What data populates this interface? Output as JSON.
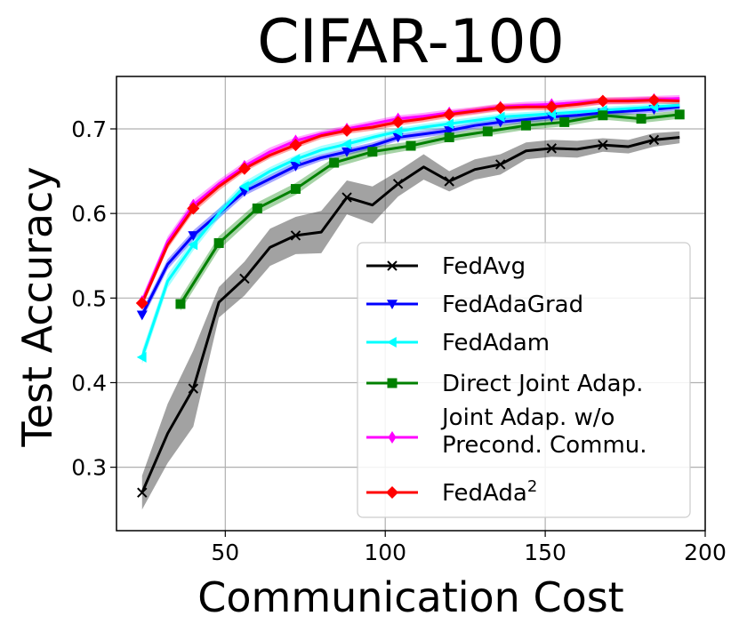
{
  "chart_data": {
    "type": "line",
    "title": "CIFAR-100",
    "xlabel": "Communication Cost",
    "ylabel": "Test Accuracy",
    "xlim": [
      16,
      200
    ],
    "ylim": [
      0.225,
      0.762
    ],
    "xticks": [
      50,
      100,
      150,
      200
    ],
    "xtick_labels": [
      "50",
      "100",
      "150",
      "200"
    ],
    "yticks": [
      0.3,
      0.4,
      0.5,
      0.6,
      0.7
    ],
    "ytick_labels": [
      "0.3",
      "0.4",
      "0.5",
      "0.6",
      "0.7"
    ],
    "grid": true,
    "legend_position": "lower-right",
    "series": [
      {
        "name": "FedAvg",
        "color": "#000000",
        "marker": "x",
        "x": [
          24,
          32,
          40,
          48,
          56,
          64,
          72,
          80,
          88,
          96,
          104,
          112,
          120,
          128,
          136,
          144,
          152,
          160,
          168,
          176,
          184,
          192
        ],
        "y": [
          0.27,
          0.34,
          0.393,
          0.495,
          0.523,
          0.56,
          0.574,
          0.578,
          0.619,
          0.61,
          0.635,
          0.655,
          0.638,
          0.652,
          0.658,
          0.674,
          0.677,
          0.676,
          0.681,
          0.679,
          0.687,
          0.69
        ],
        "band": [
          0.02,
          0.035,
          0.045,
          0.018,
          0.02,
          0.022,
          0.022,
          0.025,
          0.02,
          0.022,
          0.015,
          0.015,
          0.012,
          0.012,
          0.012,
          0.01,
          0.01,
          0.01,
          0.008,
          0.008,
          0.008,
          0.007
        ]
      },
      {
        "name": "FedAdaGrad",
        "color": "#0000ff",
        "marker": "triangle-down",
        "x": [
          24,
          32,
          40,
          48,
          56,
          64,
          72,
          80,
          88,
          96,
          104,
          112,
          120,
          128,
          136,
          144,
          152,
          160,
          168,
          176,
          184,
          192
        ],
        "y": [
          0.48,
          0.54,
          0.574,
          0.6,
          0.626,
          0.641,
          0.656,
          0.666,
          0.673,
          0.68,
          0.69,
          0.694,
          0.698,
          0.704,
          0.708,
          0.711,
          0.714,
          0.716,
          0.719,
          0.721,
          0.723,
          0.726
        ],
        "band": [
          0.006,
          0.006,
          0.006,
          0.006,
          0.005,
          0.005,
          0.005,
          0.004,
          0.004,
          0.004,
          0.004,
          0.004,
          0.004,
          0.004,
          0.004,
          0.004,
          0.004,
          0.004,
          0.004,
          0.004,
          0.004,
          0.004
        ]
      },
      {
        "name": "FedAdam",
        "color": "#00ffff",
        "marker": "triangle-left",
        "x": [
          24,
          32,
          40,
          48,
          56,
          64,
          72,
          80,
          88,
          96,
          104,
          112,
          120,
          128,
          136,
          144,
          152,
          160,
          168,
          176,
          184,
          192
        ],
        "y": [
          0.43,
          0.52,
          0.563,
          0.6,
          0.632,
          0.65,
          0.664,
          0.675,
          0.682,
          0.69,
          0.697,
          0.702,
          0.706,
          0.71,
          0.714,
          0.716,
          0.718,
          0.72,
          0.722,
          0.724,
          0.726,
          0.728
        ],
        "band": [
          0.008,
          0.008,
          0.007,
          0.006,
          0.006,
          0.005,
          0.005,
          0.005,
          0.005,
          0.004,
          0.004,
          0.004,
          0.004,
          0.004,
          0.004,
          0.004,
          0.004,
          0.004,
          0.004,
          0.004,
          0.004,
          0.004
        ]
      },
      {
        "name": "Direct Joint Adap.",
        "color": "#008000",
        "marker": "square",
        "x": [
          36,
          48,
          60,
          72,
          84,
          96,
          108,
          120,
          132,
          144,
          156,
          168,
          180,
          192
        ],
        "y": [
          0.493,
          0.565,
          0.606,
          0.629,
          0.66,
          0.673,
          0.68,
          0.69,
          0.697,
          0.704,
          0.708,
          0.716,
          0.712,
          0.717
        ],
        "band": [
          0.008,
          0.008,
          0.007,
          0.007,
          0.006,
          0.006,
          0.005,
          0.005,
          0.005,
          0.005,
          0.005,
          0.005,
          0.005,
          0.005
        ]
      },
      {
        "name": "Joint Adap. w/o Precond. Commu.",
        "name_lines": [
          "Joint Adap. w/o",
          "Precond. Commu."
        ],
        "color": "#ff00ff",
        "marker": "thin-diamond",
        "x": [
          24,
          32,
          40,
          48,
          56,
          64,
          72,
          80,
          88,
          96,
          104,
          112,
          120,
          128,
          136,
          144,
          152,
          160,
          168,
          176,
          184,
          192
        ],
        "y": [
          0.496,
          0.567,
          0.61,
          0.635,
          0.656,
          0.673,
          0.686,
          0.694,
          0.7,
          0.706,
          0.712,
          0.715,
          0.719,
          0.722,
          0.726,
          0.728,
          0.729,
          0.731,
          0.733,
          0.734,
          0.735,
          0.736
        ],
        "band": [
          0.006,
          0.006,
          0.006,
          0.005,
          0.005,
          0.005,
          0.004,
          0.004,
          0.004,
          0.004,
          0.004,
          0.004,
          0.004,
          0.004,
          0.004,
          0.004,
          0.004,
          0.004,
          0.004,
          0.004,
          0.004,
          0.004
        ]
      },
      {
        "name": "FedAda²",
        "name_base": "FedAda",
        "name_sup": "2",
        "color": "#ff0000",
        "marker": "diamond",
        "x": [
          24,
          32,
          40,
          48,
          56,
          64,
          72,
          80,
          88,
          96,
          104,
          112,
          120,
          128,
          136,
          144,
          152,
          160,
          168,
          176,
          184,
          192
        ],
        "y": [
          0.494,
          0.563,
          0.606,
          0.632,
          0.653,
          0.669,
          0.681,
          0.692,
          0.698,
          0.702,
          0.708,
          0.712,
          0.717,
          0.721,
          0.725,
          0.726,
          0.726,
          0.729,
          0.733,
          0.733,
          0.734,
          0.733
        ],
        "band": [
          0.005,
          0.005,
          0.005,
          0.005,
          0.004,
          0.004,
          0.004,
          0.004,
          0.004,
          0.004,
          0.004,
          0.004,
          0.004,
          0.004,
          0.004,
          0.004,
          0.004,
          0.004,
          0.004,
          0.004,
          0.004,
          0.004
        ]
      }
    ]
  }
}
